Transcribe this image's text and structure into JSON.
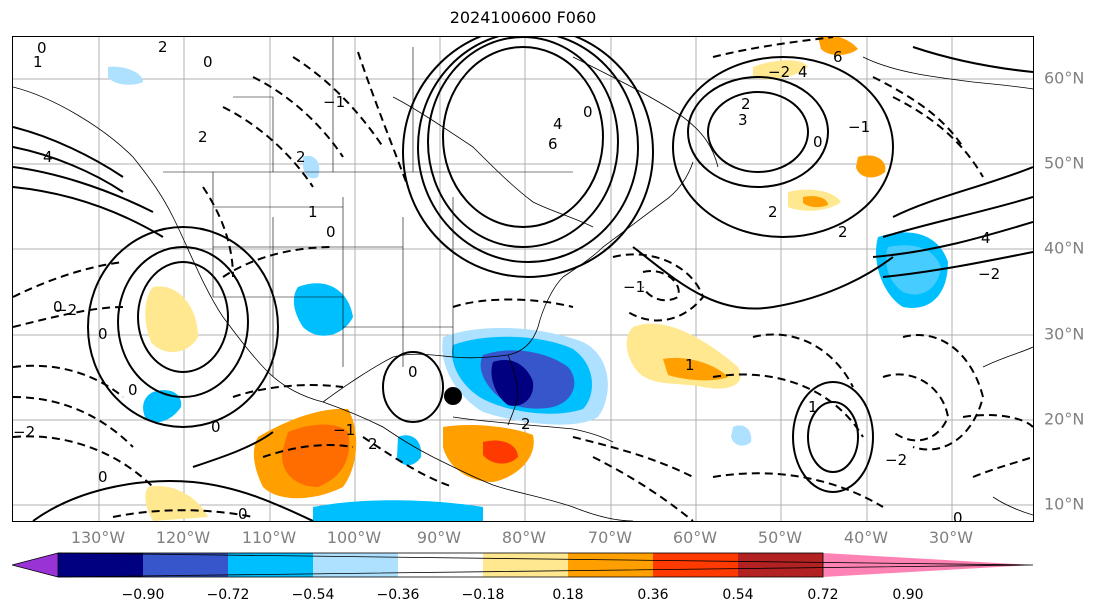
{
  "title": "2024100600 F060",
  "lon_labels": [
    "130°W",
    "120°W",
    "110°W",
    "100°W",
    "90°W",
    "80°W",
    "70°W",
    "60°W",
    "50°W",
    "40°W",
    "30°W"
  ],
  "lat_labels": [
    "60°N",
    "50°N",
    "40°N",
    "30°N",
    "20°N",
    "10°N"
  ],
  "colorbar": {
    "ticks": [
      "−0.90",
      "−0.72",
      "−0.54",
      "−0.36",
      "−0.18",
      "0.18",
      "0.36",
      "0.54",
      "0.72",
      "0.90"
    ],
    "colors": [
      "#9a33d6",
      "#000080",
      "#3856cc",
      "#00bfff",
      "#aee0ff",
      "#ffffff",
      "#ffe88f",
      "#ffa000",
      "#ff3a00",
      "#b22222",
      "#ff82b4"
    ]
  },
  "contour_labels": [
    "0",
    "2",
    "1",
    "0",
    "4",
    "2",
    "1",
    "0",
    "−1",
    "2",
    "4",
    "0",
    "6",
    "3",
    "2",
    "−2",
    "4",
    "0",
    "−1",
    "2",
    "−2",
    "0",
    "−2",
    "−1",
    "0",
    "2",
    "0",
    "4",
    "1",
    "0",
    "6",
    "1",
    "−2",
    "2",
    "−1",
    "0",
    "2",
    "−2",
    "0",
    "0",
    "0"
  ],
  "marker": {
    "type": "storm-center",
    "lon": -87,
    "lat": 23
  }
}
